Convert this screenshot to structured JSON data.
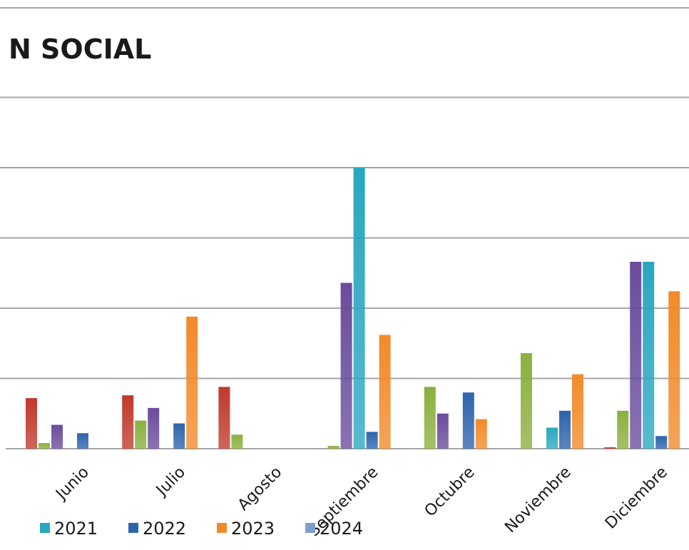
{
  "chart_data": {
    "type": "bar",
    "title": "N SOCIAL",
    "xlabel": "",
    "ylabel": "",
    "grid": true,
    "legend_position": "bottom",
    "categories": [
      "Junio",
      "Julio",
      "Agosto",
      "Septiembre",
      "Octubre",
      "Noviembre",
      "Diciembre"
    ],
    "series": [
      {
        "name": "",
        "color": "#c0392b",
        "values": [
          1.8,
          1.9,
          2.2,
          0,
          0,
          0,
          0.05
        ]
      },
      {
        "name": "",
        "color": "#8bb03e",
        "values": [
          0.2,
          1.0,
          0.5,
          0.1,
          2.2,
          3.4,
          1.35
        ]
      },
      {
        "name": "",
        "color": "#6a4c9c",
        "values": [
          0.85,
          1.45,
          0,
          5.9,
          1.25,
          0,
          6.65
        ]
      },
      {
        "name": "2021",
        "color": "#2aa7c0",
        "values": [
          0,
          0,
          0,
          10.0,
          0,
          0.75,
          6.65
        ]
      },
      {
        "name": "2022",
        "color": "#2e64ad",
        "values": [
          0.55,
          0.9,
          0,
          0.6,
          2.0,
          1.35,
          0.45
        ]
      },
      {
        "name": "2023",
        "color": "#f28a2a",
        "values": [
          0,
          4.7,
          0,
          4.05,
          1.05,
          2.65,
          5.6
        ]
      },
      {
        "name": "2024",
        "color": "#7f9dd1",
        "values": [
          0,
          0,
          0,
          0,
          0,
          0,
          0
        ]
      }
    ],
    "ylim": [
      0,
      10
    ]
  }
}
